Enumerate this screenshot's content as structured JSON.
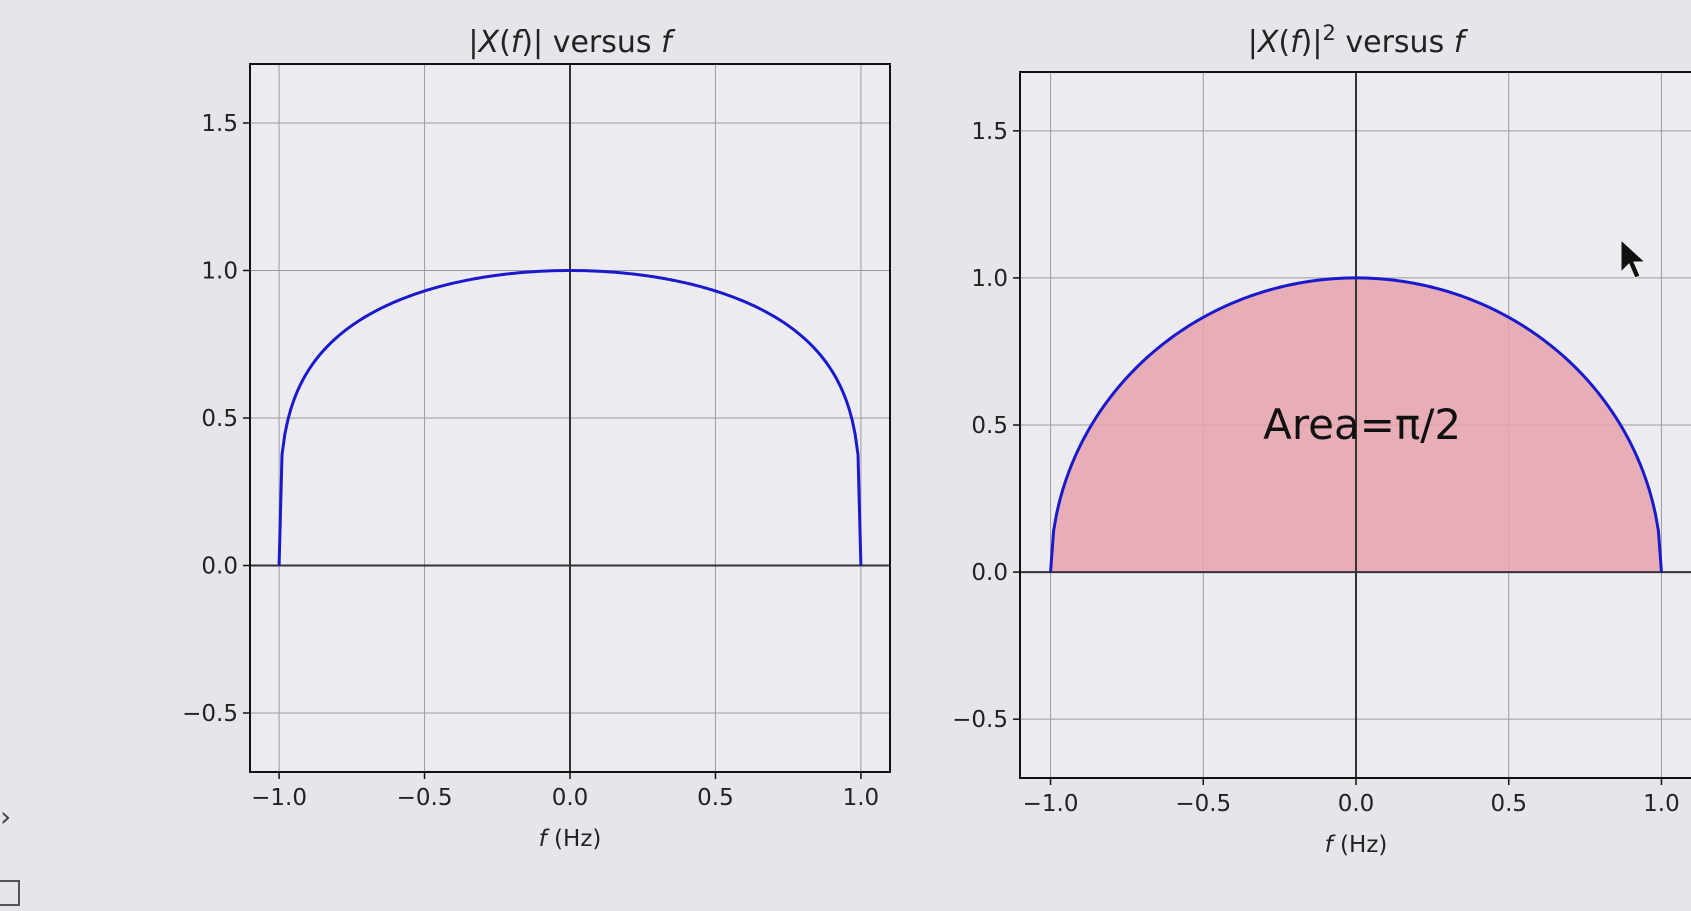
{
  "colors": {
    "background": "#e6e6ea",
    "plot_background": "#ececf0",
    "grid": "#9a9aa0",
    "zero_axis": "#333333",
    "curve": "#1a1acc",
    "fill": "#e6a3ae"
  },
  "ui": {
    "side_arrow_icon": "chevron-right-icon",
    "side_arrow_glyph": "›",
    "menu_icon": "list-icon"
  },
  "chart_data": [
    {
      "type": "line",
      "title_parts": [
        "|",
        "X",
        "(",
        "f",
        ")| versus ",
        "f"
      ],
      "xlabel_parts": [
        "f",
        " (Hz)"
      ],
      "xlim": [
        -1.1,
        1.1
      ],
      "ylim": [
        -0.7,
        1.7
      ],
      "xticks": [
        -1.0,
        -0.5,
        0.0,
        0.5,
        1.0
      ],
      "xtick_labels": [
        "−1.0",
        "−0.5",
        "0.0",
        "0.5",
        "1.0"
      ],
      "yticks": [
        -0.5,
        0.0,
        0.5,
        1.0,
        1.5
      ],
      "ytick_labels": [
        "−0.5",
        "0.0",
        "0.5",
        "1.0",
        "1.5"
      ],
      "grid": true,
      "series": [
        {
          "function": "(1 - f^2)^(1/4)",
          "domain": [
            -1.0,
            1.0
          ],
          "color": "#1a1acc",
          "x": [
            -1.0,
            -0.99,
            -0.95,
            -0.9,
            -0.8,
            -0.6,
            -0.4,
            -0.2,
            0.0,
            0.2,
            0.4,
            0.6,
            0.8,
            0.9,
            0.95,
            0.99,
            1.0
          ],
          "y": [
            0.0,
            0.375,
            0.558,
            0.66,
            0.775,
            0.894,
            0.957,
            0.99,
            1.0,
            0.99,
            0.957,
            0.894,
            0.775,
            0.66,
            0.558,
            0.375,
            0.0
          ]
        }
      ]
    },
    {
      "type": "area",
      "title_parts": [
        "|",
        "X",
        "(",
        "f",
        ")|",
        "2",
        " versus ",
        "f"
      ],
      "xlabel_parts": [
        "f",
        " (Hz)"
      ],
      "xlim": [
        -1.1,
        1.1
      ],
      "ylim": [
        -0.7,
        1.7
      ],
      "xticks": [
        -1.0,
        -0.5,
        0.0,
        0.5,
        1.0
      ],
      "xtick_labels": [
        "−1.0",
        "−0.5",
        "0.0",
        "0.5",
        "1.0"
      ],
      "yticks": [
        -0.5,
        0.0,
        0.5,
        1.0,
        1.5
      ],
      "ytick_labels": [
        "−0.5",
        "0.0",
        "0.5",
        "1.0",
        "1.5"
      ],
      "grid": true,
      "annotation": "Area=π/2",
      "series": [
        {
          "function": "(1 - f^2)^(1/2)",
          "domain": [
            -1.0,
            1.0
          ],
          "color": "#1a1acc",
          "fill": "#e6a3ae",
          "x": [
            -1.0,
            -0.95,
            -0.9,
            -0.8,
            -0.6,
            -0.4,
            -0.2,
            0.0,
            0.2,
            0.4,
            0.6,
            0.8,
            0.9,
            0.95,
            1.0
          ],
          "y": [
            0.0,
            0.312,
            0.436,
            0.6,
            0.8,
            0.917,
            0.98,
            1.0,
            0.98,
            0.917,
            0.8,
            0.6,
            0.436,
            0.312,
            0.0
          ]
        }
      ]
    }
  ]
}
